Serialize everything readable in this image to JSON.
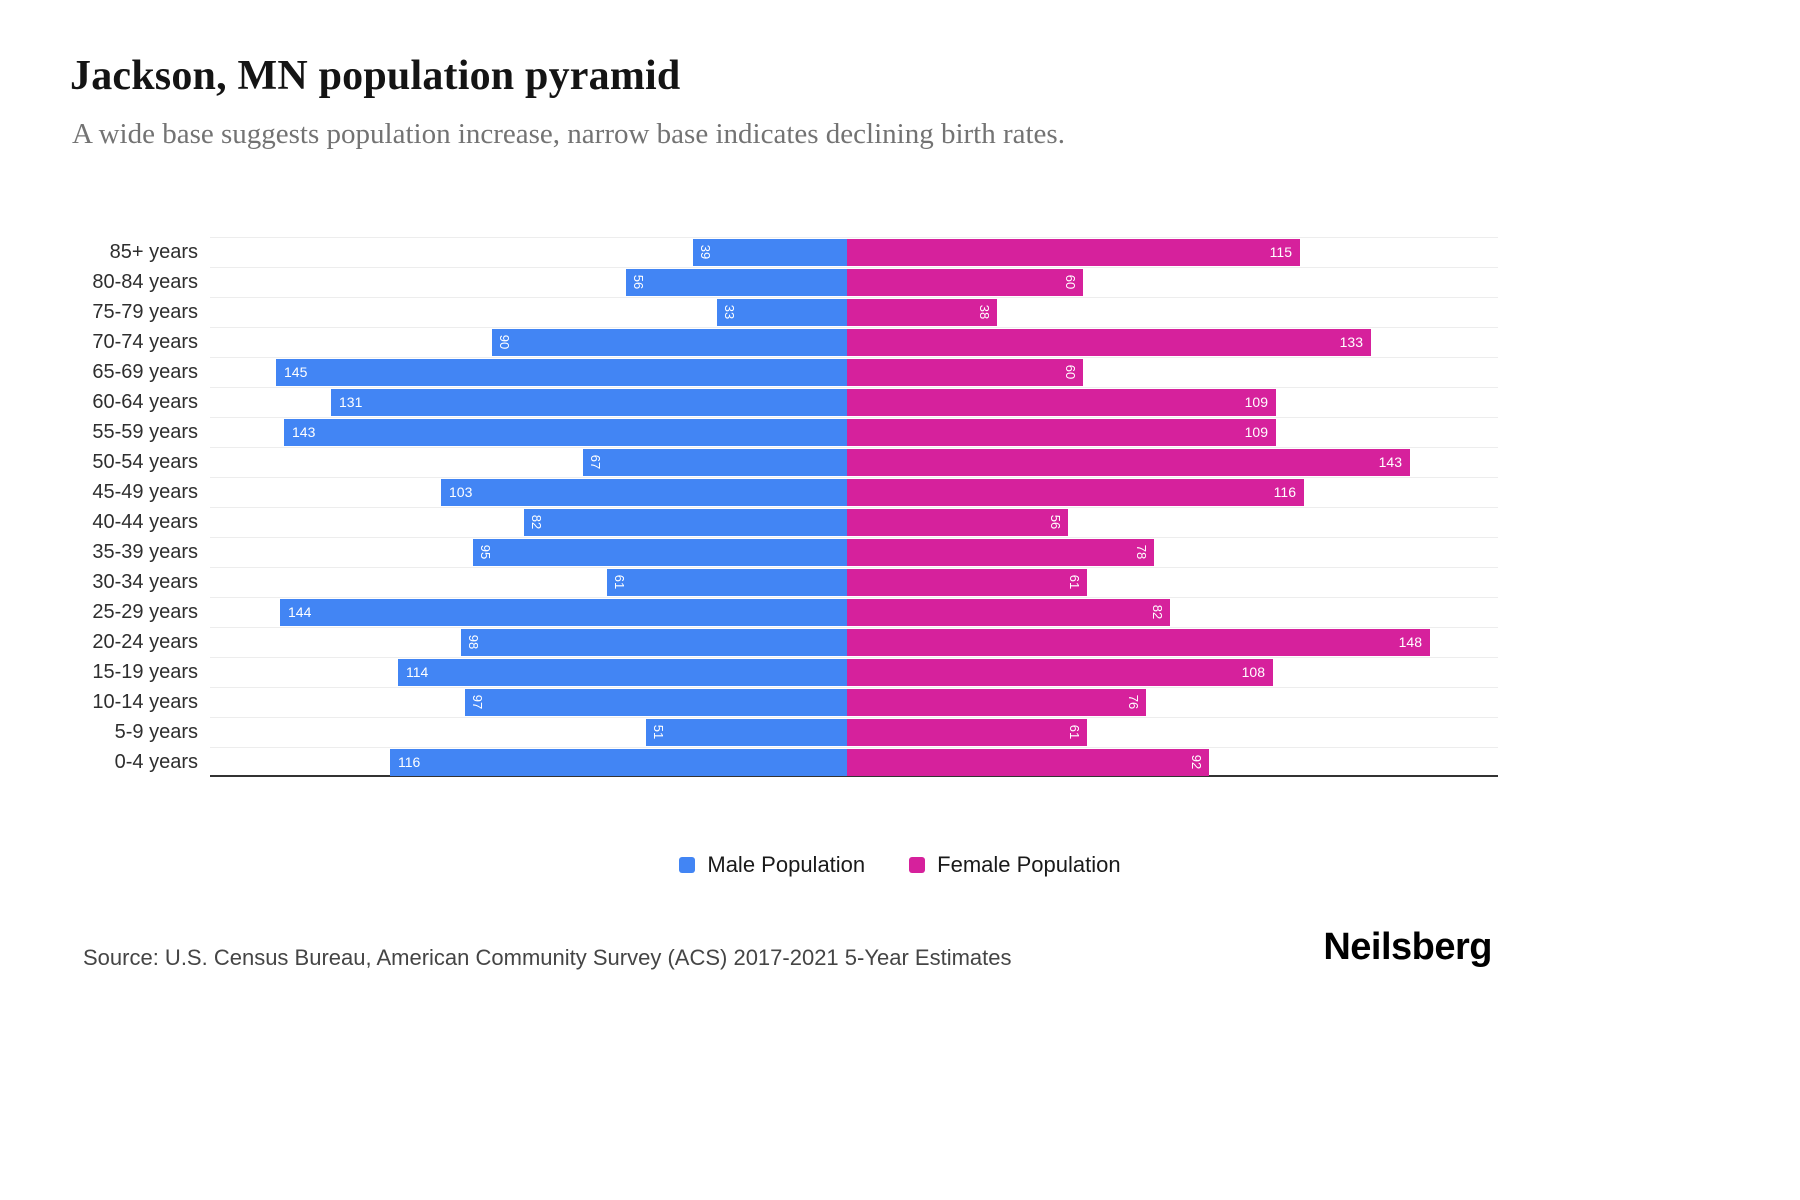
{
  "header": {
    "title": "Jackson, MN population pyramid",
    "subtitle": "A wide base suggests population increase, narrow base indicates declining birth rates."
  },
  "chart_data": {
    "type": "bar",
    "variant": "population-pyramid",
    "orientation": "horizontal",
    "grid": true,
    "legend_position": "bottom",
    "xmax_each_side": 150,
    "categories": [
      "85+ years",
      "80-84 years",
      "75-79 years",
      "70-74 years",
      "65-69 years",
      "60-64 years",
      "55-59 years",
      "50-54 years",
      "45-49 years",
      "40-44 years",
      "35-39 years",
      "30-34 years",
      "25-29 years",
      "20-24 years",
      "15-19 years",
      "10-14 years",
      "5-9 years",
      "0-4 years"
    ],
    "series": [
      {
        "name": "Male Population",
        "side": "left",
        "color": "#4285F4",
        "values": [
          39,
          56,
          33,
          90,
          145,
          131,
          143,
          67,
          103,
          82,
          95,
          61,
          144,
          98,
          114,
          97,
          51,
          116
        ]
      },
      {
        "name": "Female Population",
        "side": "right",
        "color": "#D6219C",
        "values": [
          115,
          60,
          38,
          133,
          60,
          109,
          109,
          143,
          116,
          56,
          78,
          61,
          82,
          148,
          108,
          76,
          61,
          92
        ]
      }
    ]
  },
  "footer": {
    "source": "Source: U.S. Census Bureau, American Community Survey (ACS) 2017-2021 5-Year Estimates",
    "logo": "Neilsberg"
  }
}
